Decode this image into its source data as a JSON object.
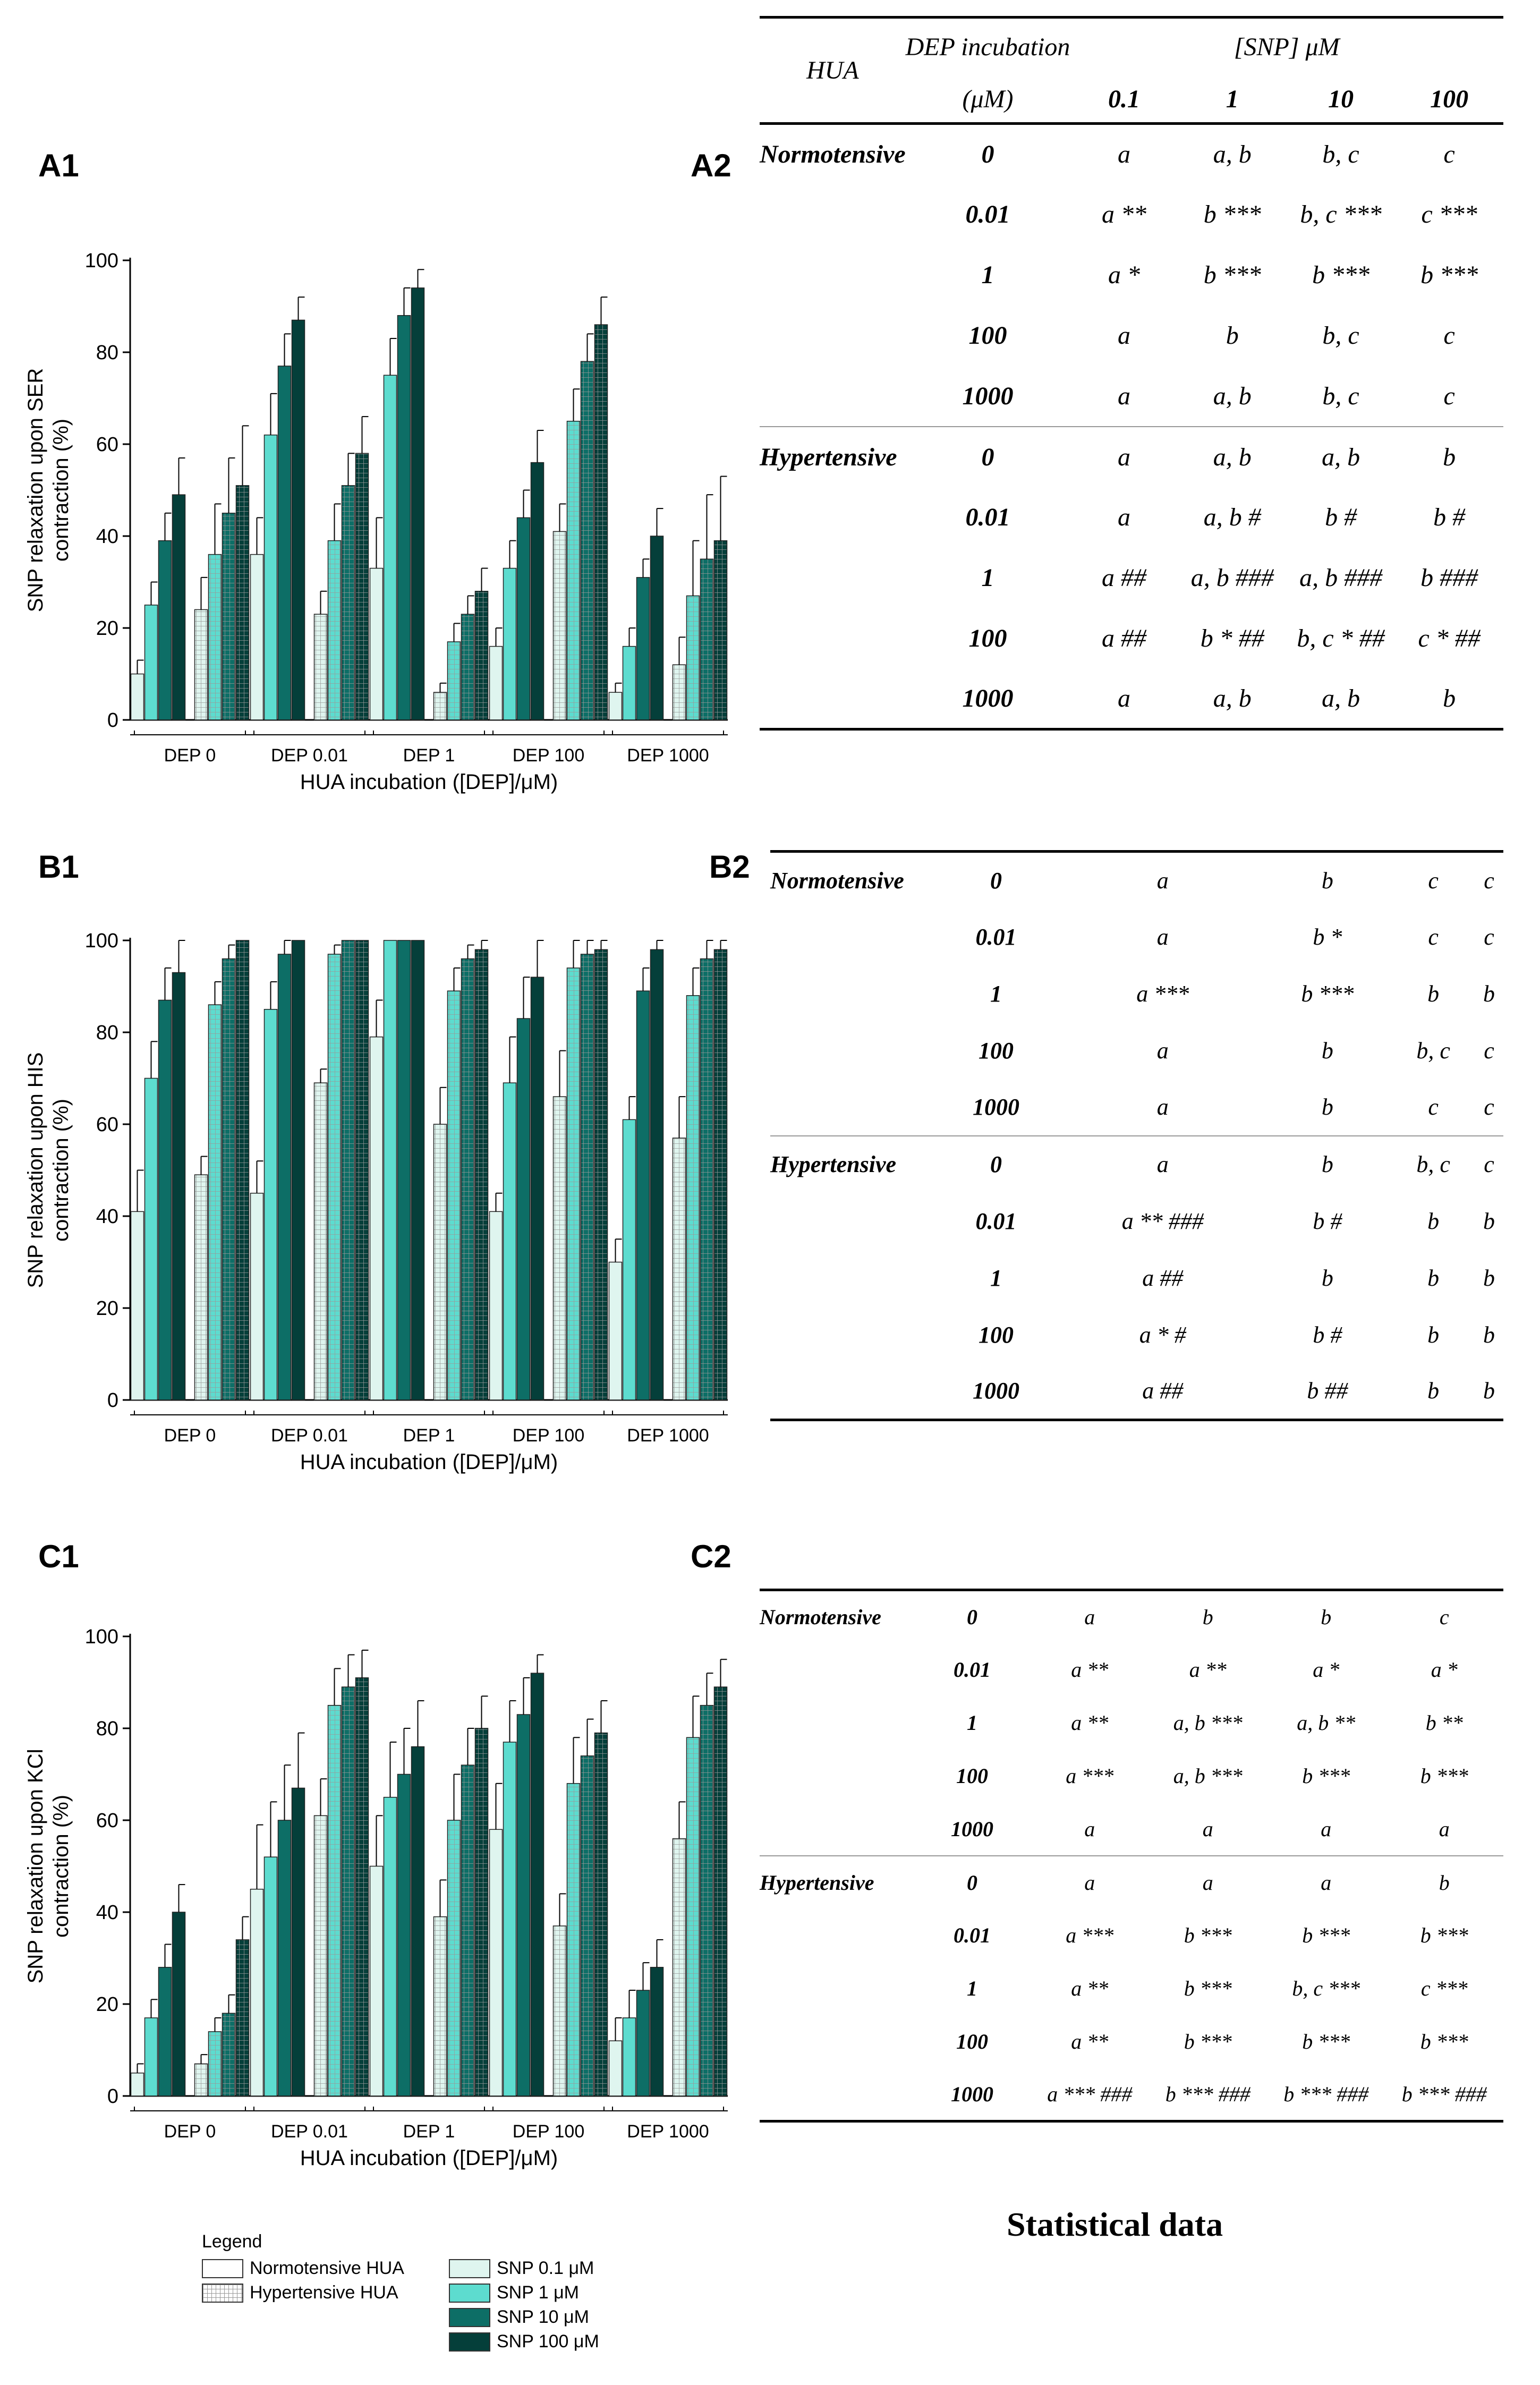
{
  "panels": {
    "A1": "A1",
    "A2": "A2",
    "B1": "B1",
    "B2": "B2",
    "C1": "C1",
    "C2": "C2"
  },
  "colors": {
    "snp01": "#dff5ef",
    "snp1": "#5ddccf",
    "snp10": "#0d6e66",
    "snp100": "#053f3a",
    "grid_line": "#999999"
  },
  "chart_data": [
    {
      "id": "A1",
      "type": "bar",
      "title": "",
      "ylabel_line1": "SNP relaxation upon SER",
      "ylabel_line2": "contraction (%)",
      "xlabel": "HUA incubation ([DEP]/μM)",
      "ylim": [
        0,
        100
      ],
      "yticks": [
        "0",
        "20",
        "40",
        "60",
        "80",
        "100"
      ],
      "groups": [
        "DEP 0",
        "DEP 0.01",
        "DEP 1",
        "DEP 100",
        "DEP 1000"
      ],
      "series": [
        {
          "name": "Normotensive HUA",
          "values": [
            [
              10,
              25,
              39,
              49
            ],
            [
              36,
              62,
              77,
              87
            ],
            [
              33,
              75,
              88,
              94
            ],
            [
              16,
              33,
              44,
              56
            ],
            [
              6,
              16,
              31,
              40
            ]
          ],
          "errors": [
            [
              3,
              5,
              6,
              8
            ],
            [
              8,
              9,
              7,
              5
            ],
            [
              11,
              8,
              6,
              4
            ],
            [
              4,
              6,
              6,
              7
            ],
            [
              2,
              4,
              4,
              6
            ]
          ]
        },
        {
          "name": "Hypertensive HUA",
          "values": [
            [
              24,
              36,
              45,
              51
            ],
            [
              23,
              39,
              51,
              58
            ],
            [
              6,
              17,
              23,
              28
            ],
            [
              41,
              65,
              78,
              86
            ],
            [
              12,
              27,
              35,
              39
            ]
          ],
          "errors": [
            [
              7,
              11,
              12,
              13
            ],
            [
              5,
              8,
              7,
              8
            ],
            [
              2,
              4,
              4,
              5
            ],
            [
              6,
              7,
              6,
              6
            ],
            [
              6,
              12,
              14,
              14
            ]
          ]
        }
      ]
    },
    {
      "id": "B1",
      "type": "bar",
      "title": "",
      "ylabel_line1": "SNP relaxation upon HIS",
      "ylabel_line2": "contraction (%)",
      "xlabel": "HUA incubation ([DEP]/μM)",
      "ylim": [
        0,
        100
      ],
      "yticks": [
        "0",
        "20",
        "40",
        "60",
        "80",
        "100"
      ],
      "groups": [
        "DEP 0",
        "DEP 0.01",
        "DEP 1",
        "DEP 100",
        "DEP 1000"
      ],
      "series": [
        {
          "name": "Normotensive HUA",
          "values": [
            [
              41,
              70,
              87,
              93
            ],
            [
              45,
              85,
              97,
              100
            ],
            [
              79,
              100,
              100,
              100
            ],
            [
              41,
              69,
              83,
              92
            ],
            [
              30,
              61,
              89,
              98
            ]
          ],
          "errors": [
            [
              9,
              8,
              7,
              7
            ],
            [
              7,
              6,
              3,
              0
            ],
            [
              8,
              0,
              0,
              0
            ],
            [
              4,
              10,
              9,
              8
            ],
            [
              5,
              5,
              5,
              2
            ]
          ]
        },
        {
          "name": "Hypertensive HUA",
          "values": [
            [
              49,
              86,
              96,
              100
            ],
            [
              69,
              97,
              100,
              100
            ],
            [
              60,
              89,
              96,
              98
            ],
            [
              66,
              94,
              97,
              98
            ],
            [
              57,
              88,
              96,
              98
            ]
          ],
          "errors": [
            [
              4,
              5,
              3,
              0
            ],
            [
              3,
              2,
              0,
              0
            ],
            [
              8,
              5,
              3,
              2
            ],
            [
              10,
              6,
              3,
              2
            ],
            [
              9,
              6,
              4,
              2
            ]
          ]
        }
      ]
    },
    {
      "id": "C1",
      "type": "bar",
      "title": "",
      "ylabel_line1": "SNP relaxation upon KCl",
      "ylabel_line2": "contraction (%)",
      "xlabel": "HUA incubation ([DEP]/μM)",
      "ylim": [
        0,
        100
      ],
      "yticks": [
        "0",
        "20",
        "40",
        "60",
        "80",
        "100"
      ],
      "groups": [
        "DEP 0",
        "DEP 0.01",
        "DEP 1",
        "DEP 100",
        "DEP 1000"
      ],
      "series": [
        {
          "name": "Normotensive HUA",
          "values": [
            [
              5,
              17,
              28,
              40
            ],
            [
              45,
              52,
              60,
              67
            ],
            [
              50,
              65,
              70,
              76
            ],
            [
              58,
              77,
              83,
              92
            ],
            [
              12,
              17,
              23,
              28
            ]
          ],
          "errors": [
            [
              2,
              4,
              5,
              6
            ],
            [
              14,
              12,
              12,
              12
            ],
            [
              11,
              12,
              10,
              10
            ],
            [
              10,
              9,
              8,
              4
            ],
            [
              5,
              6,
              6,
              6
            ]
          ]
        },
        {
          "name": "Hypertensive HUA",
          "values": [
            [
              7,
              14,
              18,
              34
            ],
            [
              61,
              85,
              89,
              91
            ],
            [
              39,
              60,
              72,
              80
            ],
            [
              37,
              68,
              74,
              79
            ],
            [
              56,
              78,
              85,
              89
            ]
          ],
          "errors": [
            [
              2,
              3,
              4,
              5
            ],
            [
              8,
              8,
              7,
              6
            ],
            [
              8,
              10,
              8,
              7
            ],
            [
              7,
              10,
              8,
              7
            ],
            [
              8,
              9,
              7,
              6
            ]
          ]
        }
      ]
    }
  ],
  "tableA": {
    "col_hua": "HUA",
    "col_dep_line1": "DEP incubation",
    "col_dep_line2": "(μM)",
    "col_snp": "[SNP] μM",
    "snp_cols": [
      "0.1",
      "1",
      "10",
      "100"
    ],
    "rows": [
      {
        "hua": "Normotensive",
        "dep": "0",
        "cells": [
          "a",
          "a, b",
          "b, c",
          "c"
        ]
      },
      {
        "hua": "",
        "dep": "0.01",
        "cells": [
          "a **",
          "b ***",
          "b, c ***",
          "c ***"
        ]
      },
      {
        "hua": "",
        "dep": "1",
        "cells": [
          "a *",
          "b ***",
          "b ***",
          "b ***"
        ]
      },
      {
        "hua": "",
        "dep": "100",
        "cells": [
          "a",
          "b",
          "b, c",
          "c"
        ]
      },
      {
        "hua": "",
        "dep": "1000",
        "cells": [
          "a",
          "a, b",
          "b, c",
          "c"
        ]
      },
      {
        "hua": "Hypertensive",
        "dep": "0",
        "cells": [
          "a",
          "a, b",
          "a, b",
          "b"
        ]
      },
      {
        "hua": "",
        "dep": "0.01",
        "cells": [
          "a",
          "a, b #",
          "b #",
          "b #"
        ]
      },
      {
        "hua": "",
        "dep": "1",
        "cells": [
          "a ##",
          "a, b ###",
          "a, b ###",
          "b ###"
        ]
      },
      {
        "hua": "",
        "dep": "100",
        "cells": [
          "a ##",
          "b * ##",
          "b, c * ##",
          "c * ##"
        ]
      },
      {
        "hua": "",
        "dep": "1000",
        "cells": [
          "a",
          "a, b",
          "a, b",
          "b"
        ]
      }
    ]
  },
  "tableB": {
    "rows": [
      {
        "hua": "Normotensive",
        "dep": "0",
        "cells": [
          "a",
          "b",
          "c",
          "c"
        ]
      },
      {
        "hua": "",
        "dep": "0.01",
        "cells": [
          "a",
          "b *",
          "c",
          "c"
        ]
      },
      {
        "hua": "",
        "dep": "1",
        "cells": [
          "a ***",
          "b ***",
          "b",
          "b"
        ]
      },
      {
        "hua": "",
        "dep": "100",
        "cells": [
          "a",
          "b",
          "b, c",
          "c"
        ]
      },
      {
        "hua": "",
        "dep": "1000",
        "cells": [
          "a",
          "b",
          "c",
          "c"
        ]
      },
      {
        "hua": "Hypertensive",
        "dep": "0",
        "cells": [
          "a",
          "b",
          "b, c",
          "c"
        ]
      },
      {
        "hua": "",
        "dep": "0.01",
        "cells": [
          "a ** ###",
          "b #",
          "b",
          "b"
        ]
      },
      {
        "hua": "",
        "dep": "1",
        "cells": [
          "a ##",
          "b",
          "b",
          "b"
        ]
      },
      {
        "hua": "",
        "dep": "100",
        "cells": [
          "a * #",
          "b #",
          "b",
          "b"
        ]
      },
      {
        "hua": "",
        "dep": "1000",
        "cells": [
          "a ##",
          "b ##",
          "b",
          "b"
        ]
      }
    ]
  },
  "tableC": {
    "rows": [
      {
        "hua": "Normotensive",
        "dep": "0",
        "cells": [
          "a",
          "b",
          "b",
          "c"
        ]
      },
      {
        "hua": "",
        "dep": "0.01",
        "cells": [
          "a **",
          "a **",
          "a *",
          "a *"
        ]
      },
      {
        "hua": "",
        "dep": "1",
        "cells": [
          "a **",
          "a, b ***",
          "a, b **",
          "b **"
        ]
      },
      {
        "hua": "",
        "dep": "100",
        "cells": [
          "a ***",
          "a, b ***",
          "b ***",
          "b ***"
        ]
      },
      {
        "hua": "",
        "dep": "1000",
        "cells": [
          "a",
          "a",
          "a",
          "a"
        ]
      },
      {
        "hua": "Hypertensive",
        "dep": "0",
        "cells": [
          "a",
          "a",
          "a",
          "b"
        ]
      },
      {
        "hua": "",
        "dep": "0.01",
        "cells": [
          "a ***",
          "b ***",
          "b ***",
          "b ***"
        ]
      },
      {
        "hua": "",
        "dep": "1",
        "cells": [
          "a **",
          "b ***",
          "b, c ***",
          "c ***"
        ]
      },
      {
        "hua": "",
        "dep": "100",
        "cells": [
          "a **",
          "b ***",
          "b ***",
          "b ***"
        ]
      },
      {
        "hua": "",
        "dep": "1000",
        "cells": [
          "a *** ###",
          "b *** ###",
          "b *** ###",
          "b *** ###"
        ]
      }
    ]
  },
  "statistical_title": "Statistical data",
  "legend": {
    "title": "Legend",
    "normotensive": "Normotensive HUA",
    "hypertensive": "Hypertensive HUA",
    "snp01": "SNP 0.1 μM",
    "snp1": "SNP 1 μM",
    "snp10": "SNP 10 μM",
    "snp100": "SNP 100 μM"
  }
}
